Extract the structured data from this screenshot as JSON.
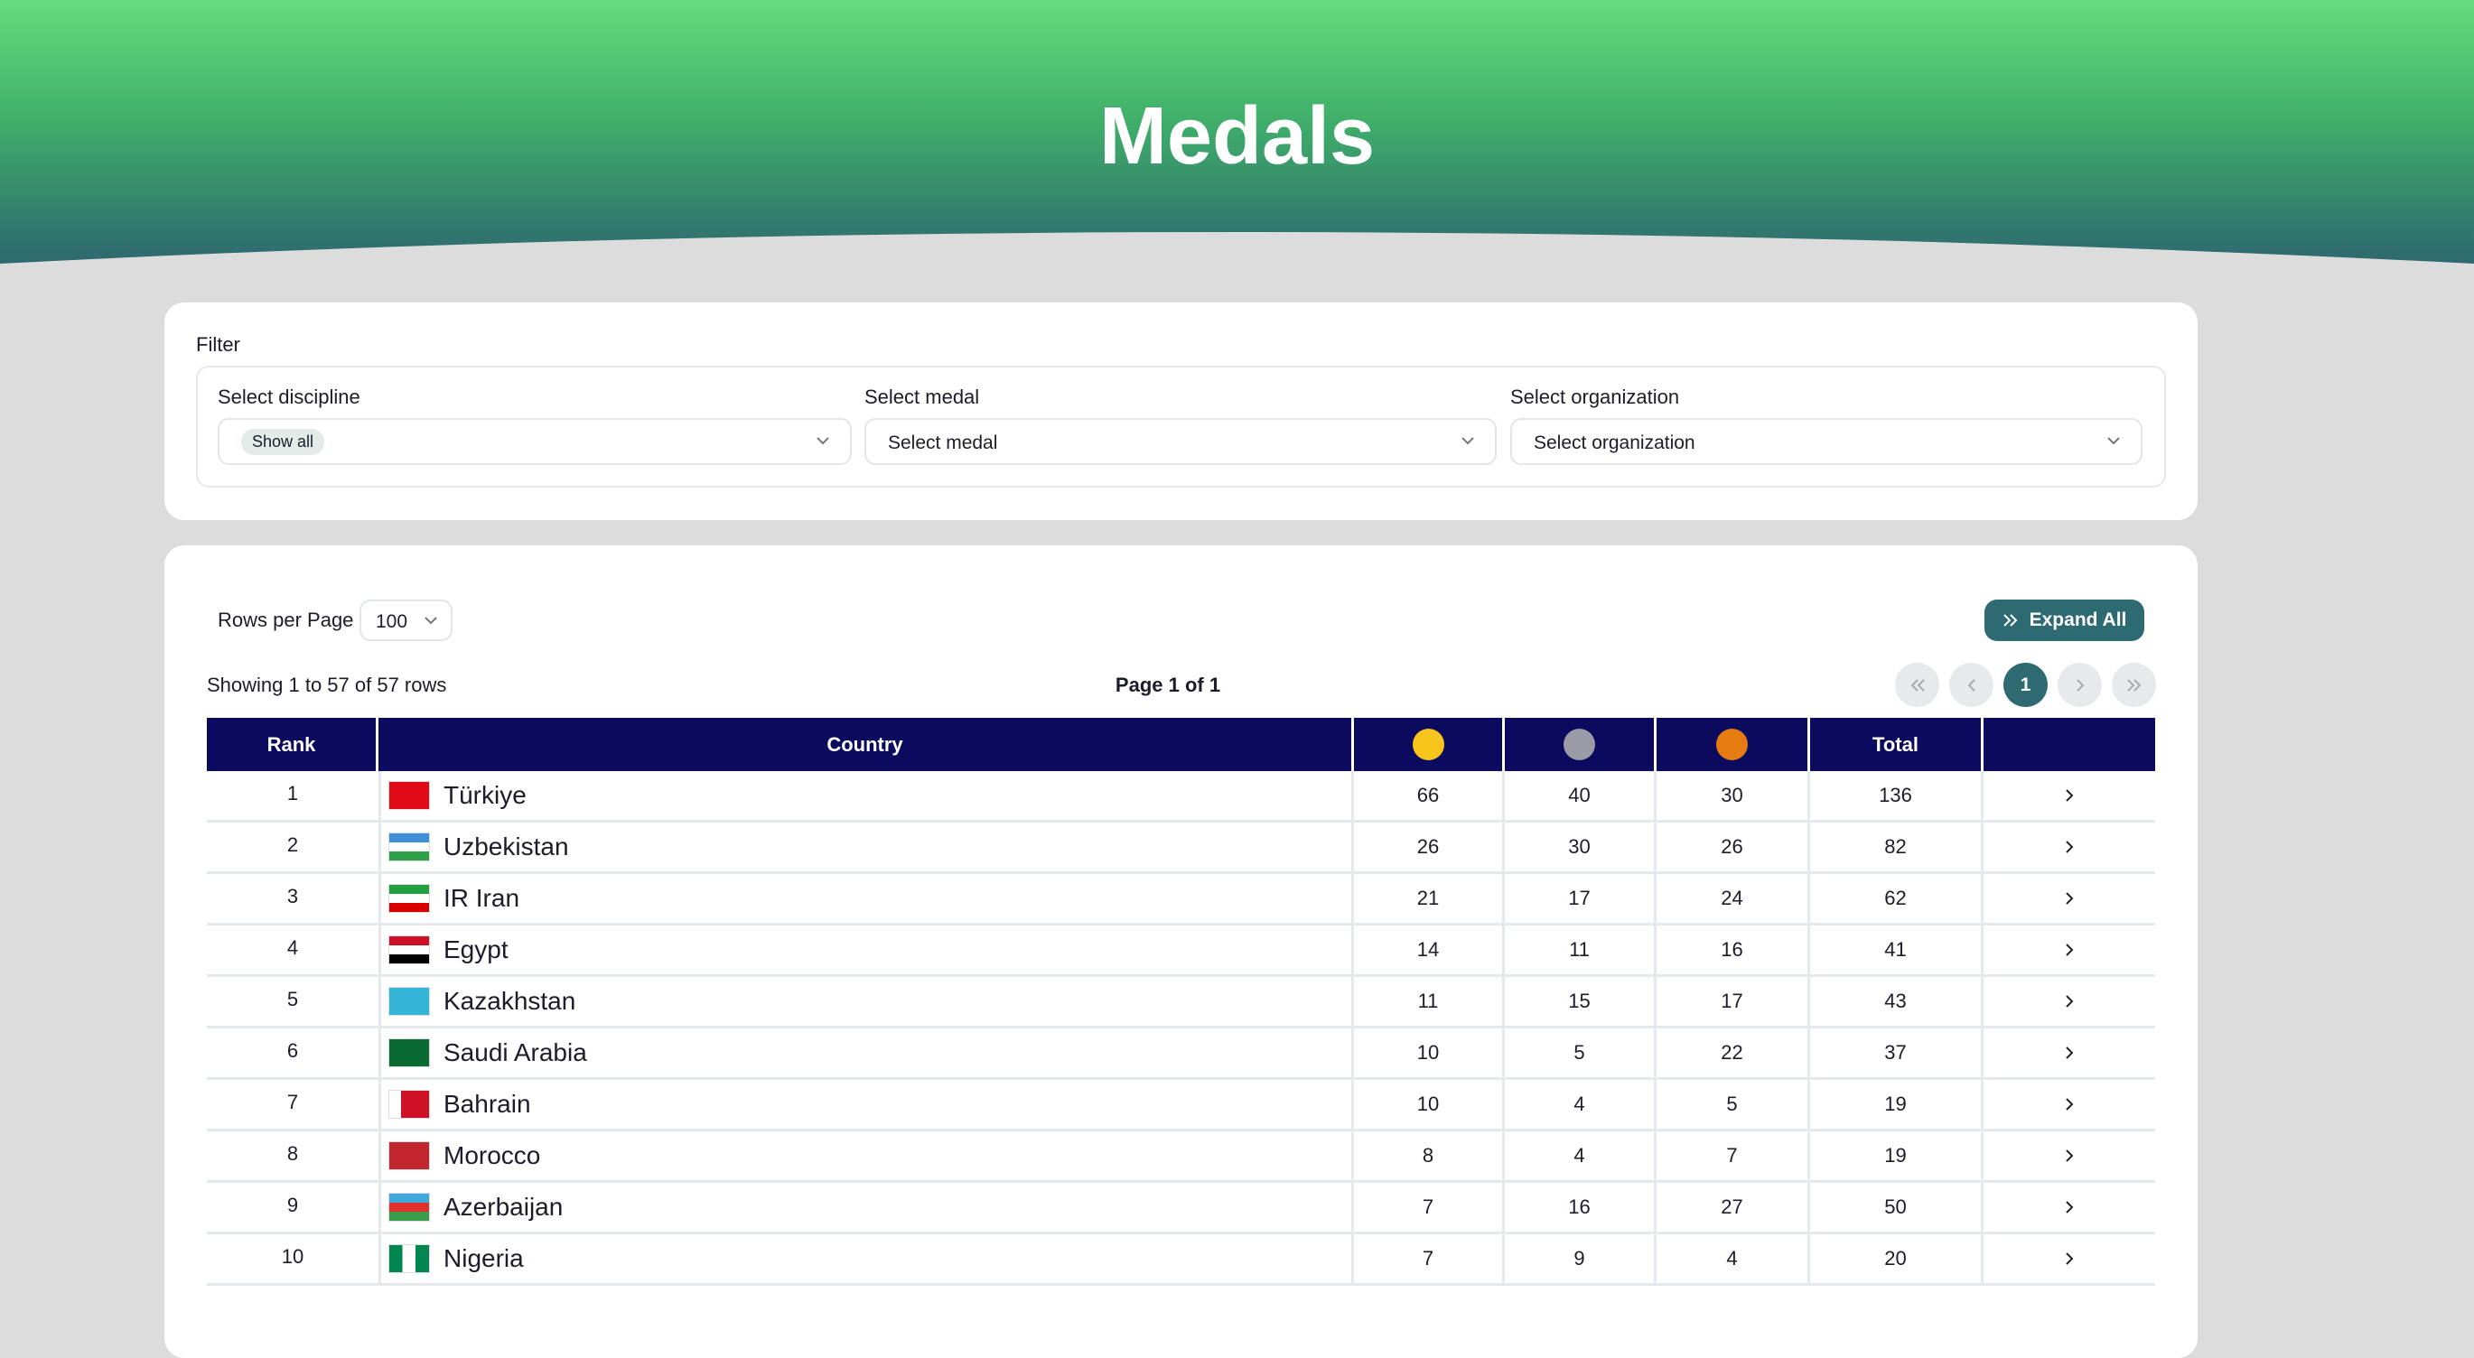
{
  "header": {
    "title": "Medals"
  },
  "filter": {
    "label": "Filter",
    "fields": [
      {
        "label": "Select discipline",
        "value": "Show all"
      },
      {
        "label": "Select medal",
        "value": "Select medal"
      },
      {
        "label": "Select organization",
        "value": "Select organization"
      }
    ]
  },
  "table_controls": {
    "rows_per_page_label": "Rows per Page",
    "rows_per_page": 100,
    "expand_button": "Expand All",
    "showing": "Showing 1 to 57 of 57 rows",
    "page_info": "Page 1 of 1",
    "current_page": 1
  },
  "table": {
    "header": {
      "rank": "Rank",
      "country": "Country",
      "total": "Total"
    },
    "rows": [
      [
        1,
        "Türkiye",
        66,
        40,
        30,
        136
      ],
      [
        2,
        "Uzbekistan",
        26,
        30,
        26,
        82
      ],
      [
        3,
        "IR Iran",
        21,
        17,
        24,
        62
      ],
      [
        4,
        "Egypt",
        14,
        11,
        16,
        41
      ],
      [
        5,
        "Kazakhstan",
        11,
        15,
        17,
        43
      ],
      [
        6,
        "Saudi Arabia",
        10,
        5,
        22,
        37
      ],
      [
        7,
        "Bahrain",
        10,
        4,
        5,
        19
      ],
      [
        8,
        "Morocco",
        8,
        4,
        7,
        19
      ],
      [
        9,
        "Azerbaijan",
        7,
        16,
        27,
        50
      ],
      [
        10,
        "Nigeria",
        7,
        9,
        4,
        20
      ]
    ]
  }
}
